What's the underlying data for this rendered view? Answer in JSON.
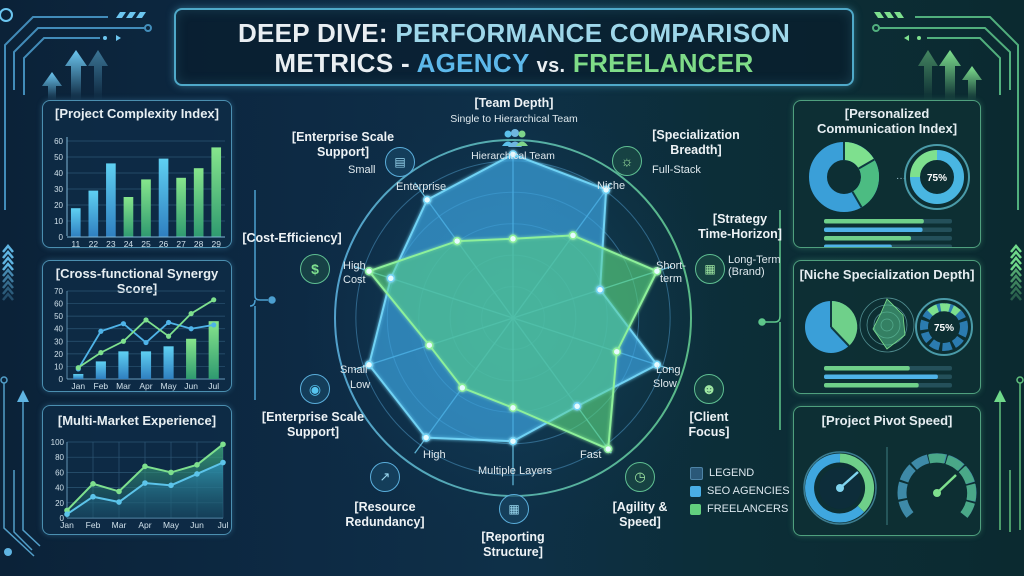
{
  "header": {
    "line1_part1": "DEEP DIVE:",
    "line1_part2": "PERFORMANCE COMPARISON",
    "line2_part1": "METRICS -",
    "line2_agency": "AGENCY",
    "line2_vs": "vs.",
    "line2_freelancer": "FREELANCER"
  },
  "colors": {
    "agency": "#4fb3e8",
    "freelancer": "#6fd98a",
    "panel_blue": "#4b8fb0",
    "panel_green": "#4fa07e",
    "background": "#0d2a44"
  },
  "left_panels": {
    "complexity": {
      "title": "[Project Complexity Index]"
    },
    "synergy": {
      "title": "[Cross-functional Synergy Score]"
    },
    "multimarket": {
      "title": "[Multi-Market Experience]"
    }
  },
  "right_panels": {
    "communication": {
      "title": "[Personalized Communication Index]",
      "gauge_value": "75%"
    },
    "niche": {
      "title": "[Niche Specialization Depth]",
      "gauge_value": "75%"
    },
    "pivot": {
      "title": "[Project Pivot Speed]"
    }
  },
  "radar": {
    "axes": [
      {
        "title": "[Team Depth]",
        "subtitle": "Single to Hierarchical Team",
        "outer": "Hierarchical Team",
        "icon": "team-icon"
      },
      {
        "title": "[Specialization Breadth]",
        "outer": "Full-Stack",
        "inner": "Niche",
        "icon": "lightbulb-gear-icon"
      },
      {
        "title": "[Strategy Time-Horizon]",
        "outer": "Long-Term (Brand)",
        "inner": "Short-term",
        "icon": "calendar-icon"
      },
      {
        "title": "[Client Focus]",
        "inner_top": "Long",
        "inner_bottom": "Slow",
        "icon": "client-person-icon"
      },
      {
        "title": "[Agility & Speed]",
        "inner": "Fast",
        "icon": "speedometer-icon"
      },
      {
        "title": "[Reporting Structure]",
        "inner": "Multiple Layers",
        "icon": "report-calendar-icon"
      },
      {
        "title": "[Resource Redundancy]",
        "inner": "High",
        "icon": "growth-chart-icon"
      },
      {
        "title": "[Enterprise Scale Support]",
        "inner_top": "Small",
        "inner_bottom": "Low",
        "icon": "network-target-icon"
      },
      {
        "title": "[Cost-Efficiency]",
        "inner_top": "High",
        "inner_bottom": "Cost",
        "icon": "dollar-tag-icon"
      },
      {
        "title": "[Enterprise Scale Support]",
        "outer": "Small",
        "inner": "Enterprise",
        "icon": "bar-growth-icon"
      }
    ],
    "legend": {
      "header": "LEGEND",
      "agency": "SEO AGENCIES",
      "freelancer": "FREELANCERS"
    }
  },
  "chart_data": [
    {
      "type": "bar",
      "title": "[Project Complexity Index]",
      "categories": [
        "11",
        "22",
        "23",
        "24",
        "25",
        "26",
        "27",
        "28",
        "29"
      ],
      "values": [
        18,
        29,
        46,
        25,
        36,
        49,
        37,
        43,
        56
      ],
      "bar_colors": [
        "blue",
        "blue",
        "blue",
        "green",
        "green",
        "blue",
        "green",
        "green",
        "green"
      ],
      "yticks": [
        0,
        10,
        20,
        30,
        40,
        50,
        60
      ],
      "ylim": [
        0,
        60
      ],
      "grid": true
    },
    {
      "type": "bar+line",
      "title": "[Cross-functional Synergy Score]",
      "categories": [
        "Jan",
        "Feb",
        "Mar",
        "Apr",
        "May",
        "Jun",
        "Jul"
      ],
      "bars": [
        4,
        14,
        22,
        22,
        26,
        32,
        46
      ],
      "series": [
        {
          "name": "Agency",
          "color": "blue",
          "values": [
            8,
            38,
            44,
            29,
            45,
            40,
            43
          ]
        },
        {
          "name": "Freelancer",
          "color": "green",
          "values": [
            9,
            21,
            30,
            47,
            34,
            52,
            63
          ]
        }
      ],
      "yticks": [
        0,
        10,
        20,
        30,
        40,
        50,
        60,
        70
      ],
      "ylim": [
        0,
        70
      ],
      "grid": true
    },
    {
      "type": "area",
      "title": "[Multi-Market Experience]",
      "categories": [
        "Jan",
        "Feb",
        "Mar",
        "Apr",
        "May",
        "Jun",
        "Jul"
      ],
      "series": [
        {
          "name": "Freelancer",
          "color": "green",
          "values": [
            10,
            45,
            35,
            68,
            60,
            70,
            97
          ]
        },
        {
          "name": "Agency",
          "color": "blue",
          "values": [
            5,
            28,
            21,
            46,
            43,
            58,
            73
          ]
        }
      ],
      "yticks": [
        0,
        20,
        40,
        60,
        80,
        100
      ],
      "ylim": [
        0,
        100
      ],
      "grid": true
    },
    {
      "type": "radar",
      "title": "Performance Comparison Metrics",
      "axes": [
        "Team Depth",
        "Specialization Breadth",
        "Strategy Time-Horizon",
        "Client Focus",
        "Agility & Speed",
        "Reporting Structure",
        "Resource Redundancy",
        "Enterprise Scale Support (Low)",
        "Cost-Efficiency",
        "Enterprise Scale Support"
      ],
      "series": [
        {
          "name": "SEO AGENCIES",
          "values": [
            0.93,
            0.9,
            0.52,
            0.86,
            0.62,
            0.7,
            0.84,
            0.86,
            0.73,
            0.83
          ]
        },
        {
          "name": "FREELANCERS",
          "values": [
            0.45,
            0.58,
            0.86,
            0.62,
            0.92,
            0.51,
            0.49,
            0.5,
            0.86,
            0.54
          ]
        }
      ],
      "legend_position": "bottom-right",
      "rings": 5
    },
    {
      "type": "pie",
      "title": "[Personalized Communication Index]",
      "slices": [
        {
          "label": "blue",
          "value": 65
        },
        {
          "label": "green-a",
          "value": 15
        },
        {
          "label": "green-b",
          "value": 20
        }
      ],
      "gauge": 75,
      "bars": [
        78,
        77,
        68,
        53
      ]
    },
    {
      "type": "pie",
      "title": "[Niche Specialization Depth]",
      "slices": [
        {
          "label": "blue",
          "value": 62
        },
        {
          "label": "green",
          "value": 38
        }
      ],
      "gauge": 75,
      "bars": [
        67,
        89,
        74
      ]
    }
  ]
}
